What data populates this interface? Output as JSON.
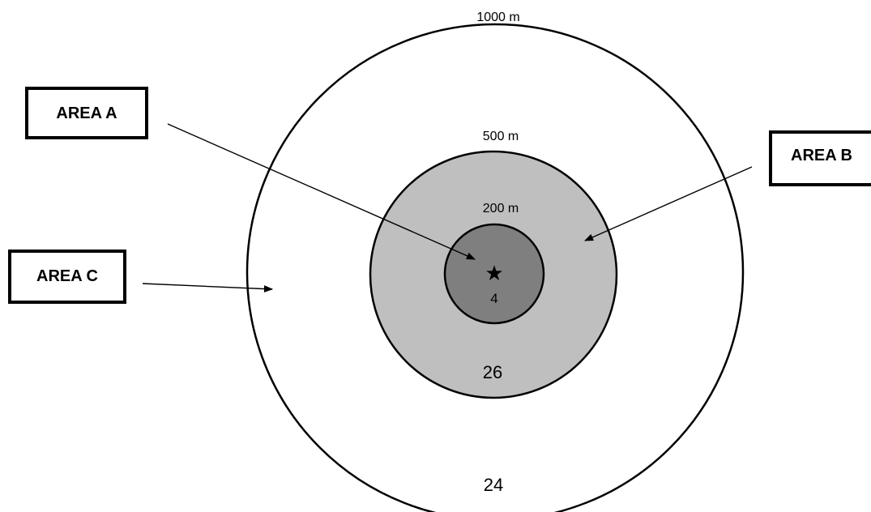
{
  "rings": {
    "outer": {
      "radius_label": "1000 m",
      "count": "24"
    },
    "middle": {
      "radius_label": "500 m",
      "count": "26"
    },
    "inner": {
      "radius_label": "200 m",
      "count": "4"
    }
  },
  "center_marker": {
    "icon": "star-icon",
    "glyph": "★"
  },
  "areas": {
    "a": {
      "label": "AREA A"
    },
    "b": {
      "label": "AREA B"
    },
    "c": {
      "label": "AREA C"
    }
  },
  "colors": {
    "outer_fill": "#ffffff",
    "middle_fill": "#bfbfbf",
    "inner_fill": "#7f7f7f",
    "stroke": "#000000"
  }
}
